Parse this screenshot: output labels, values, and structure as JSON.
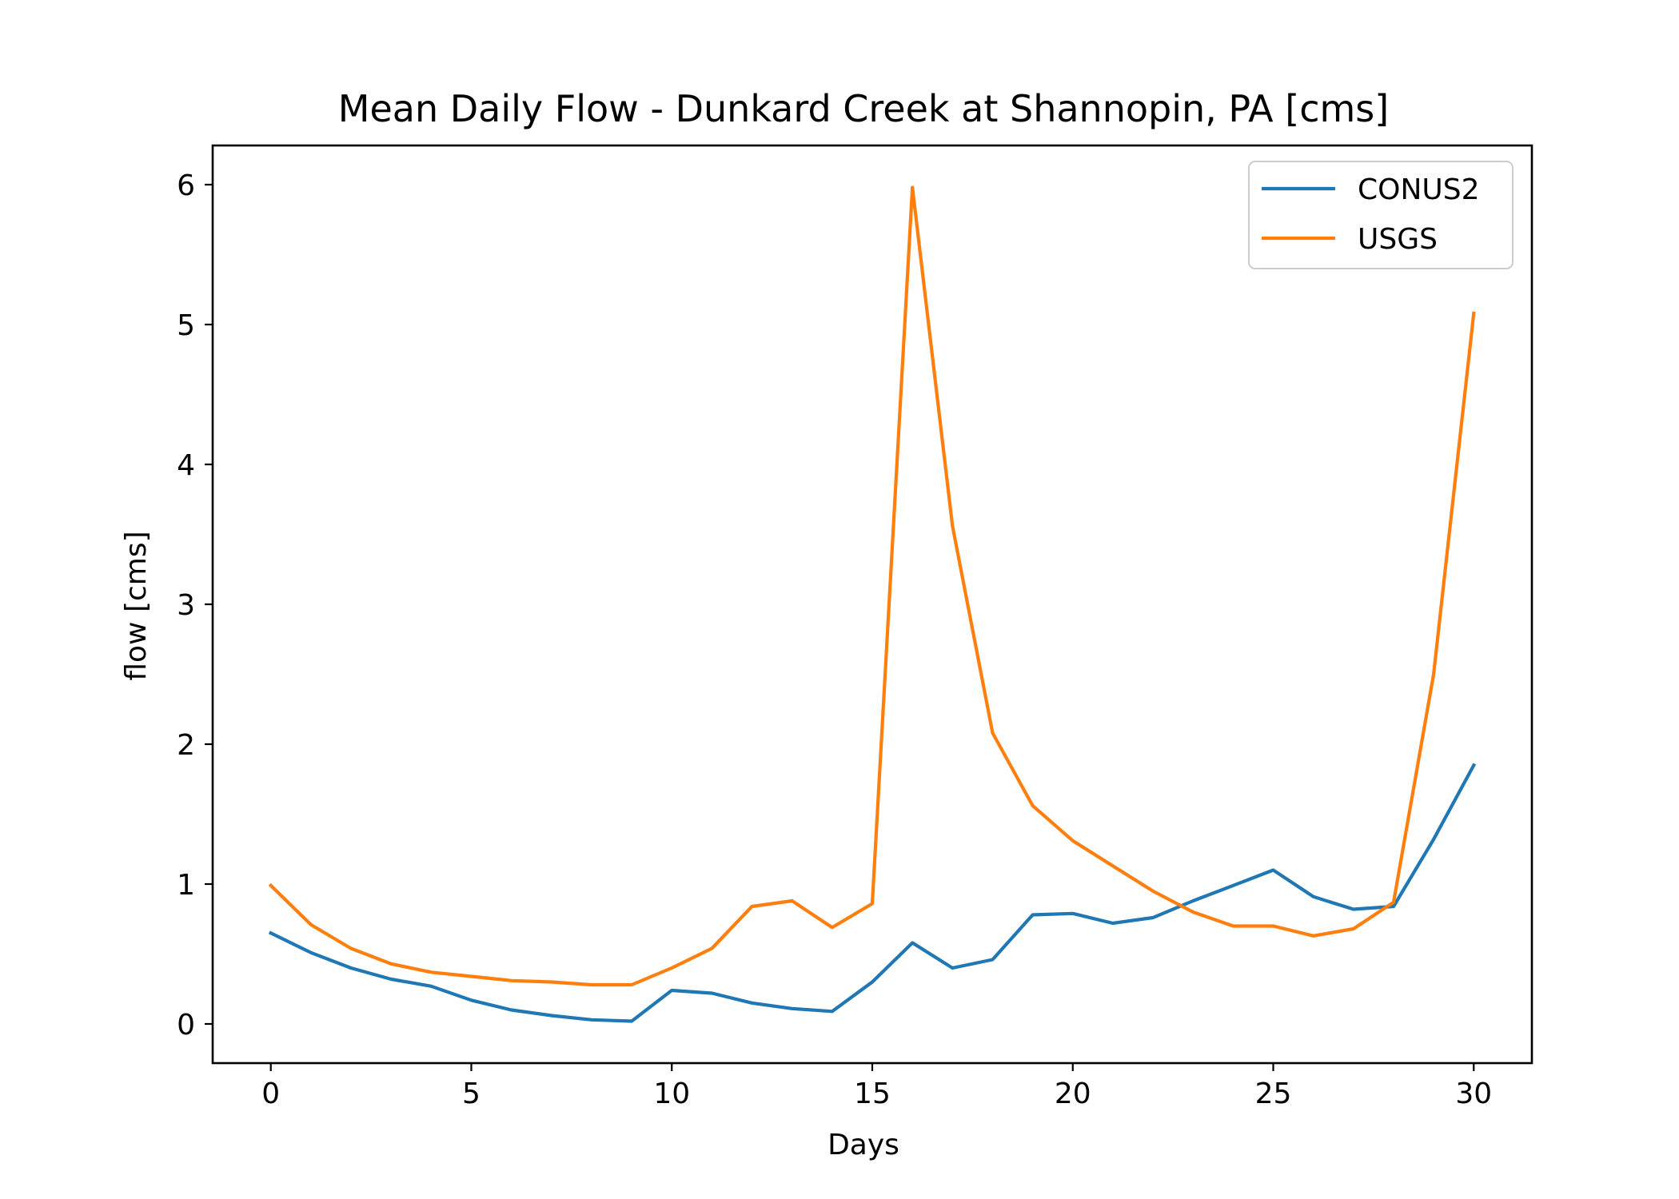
{
  "chart_data": {
    "type": "line",
    "title": "Mean Daily Flow - Dunkard Creek at Shannopin, PA [cms]",
    "xlabel": "Days",
    "ylabel": "flow [cms]",
    "xlim": [
      -1.45,
      31.45
    ],
    "ylim": [
      -0.28,
      6.28
    ],
    "xticks": [
      0,
      5,
      10,
      15,
      20,
      25,
      30
    ],
    "yticks": [
      0,
      1,
      2,
      3,
      4,
      5,
      6
    ],
    "grid": false,
    "legend_position": "top-right",
    "x": [
      0,
      1,
      2,
      3,
      4,
      5,
      6,
      7,
      8,
      9,
      10,
      11,
      12,
      13,
      14,
      15,
      16,
      17,
      18,
      19,
      20,
      21,
      22,
      23,
      24,
      25,
      26,
      27,
      28,
      29,
      30
    ],
    "series": [
      {
        "name": "CONUS2",
        "color": "#1f77b4",
        "values": [
          0.65,
          0.51,
          0.4,
          0.32,
          0.27,
          0.17,
          0.1,
          0.06,
          0.03,
          0.02,
          0.24,
          0.22,
          0.15,
          0.11,
          0.09,
          0.3,
          0.58,
          0.4,
          0.46,
          0.78,
          0.79,
          0.72,
          0.76,
          0.88,
          0.99,
          1.1,
          0.91,
          0.82,
          0.84,
          1.32,
          1.85
        ]
      },
      {
        "name": "USGS",
        "color": "#ff7f0e",
        "values": [
          0.99,
          0.71,
          0.54,
          0.43,
          0.37,
          0.34,
          0.31,
          0.3,
          0.28,
          0.28,
          0.4,
          0.54,
          0.84,
          0.88,
          0.69,
          0.86,
          5.98,
          3.56,
          2.08,
          1.56,
          1.31,
          1.13,
          0.95,
          0.8,
          0.7,
          0.7,
          0.63,
          0.68,
          0.87,
          2.5,
          5.08
        ]
      }
    ]
  }
}
